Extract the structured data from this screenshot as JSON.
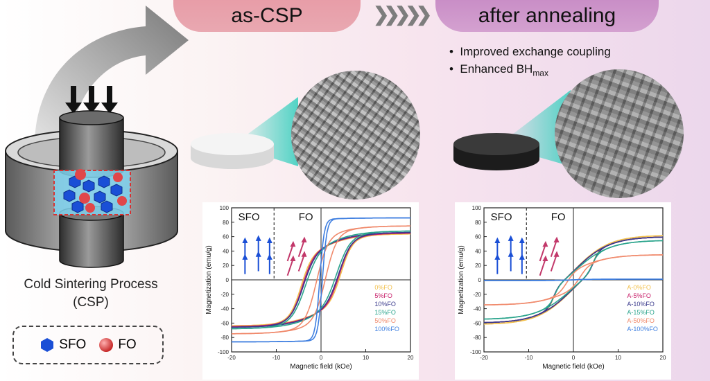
{
  "header": {
    "left_label": "as-CSP",
    "right_label": "after annealing",
    "chevrons": "❯❯❯❯❯",
    "bullet_1": "Improved exchange coupling",
    "bullet_2_main": "Enhanced BH",
    "bullet_2_sub": "max"
  },
  "process": {
    "caption_line1": "Cold Sintering Process",
    "caption_line2": "(CSP)",
    "legend_sfo": "SFO",
    "legend_fo": "FO"
  },
  "colors": {
    "sfo_blue": "#1a4fd6",
    "fo_red": "#d63333",
    "pill_left": "#e79aa5",
    "pill_right": "#c689c4"
  },
  "chart_data": [
    {
      "type": "line",
      "xlabel": "Magnetic field (kOe)",
      "ylabel": "Magnetization (emu/g)",
      "xlim": [
        -20,
        20
      ],
      "ylim": [
        -100,
        100
      ],
      "xticks": [
        "-20",
        "-10",
        "0",
        "10",
        "20"
      ],
      "yticks": [
        "100",
        "80",
        "60",
        "40",
        "20",
        "0",
        "-20",
        "-40",
        "-60",
        "-80",
        "-100"
      ],
      "region_labels": [
        "SFO",
        "FO"
      ],
      "series": [
        {
          "name": "0%FO",
          "color": "#f2c14e",
          "ms": 64,
          "hc": 4.5,
          "w": 2.5,
          "hf": 0.3
        },
        {
          "name": "5%FO",
          "color": "#c8206a",
          "ms": 65,
          "hc": 4.2,
          "w": 2.6,
          "hf": 0.3
        },
        {
          "name": "10%FO",
          "color": "#3a3a8c",
          "ms": 66,
          "hc": 4.0,
          "w": 2.8,
          "hf": 0.3
        },
        {
          "name": "15%FO",
          "color": "#2aa48c",
          "ms": 68,
          "hc": 3.5,
          "w": 3.0,
          "hf": 0.3
        },
        {
          "name": "50%FO",
          "color": "#f08a6c",
          "ms": 75,
          "hc": 1.0,
          "w": 2.5,
          "hf": 0.2
        },
        {
          "name": "100%FO",
          "color": "#3f7fe0",
          "ms": 86,
          "hc": 0.3,
          "w": 1.0,
          "hf": 0.02
        }
      ]
    },
    {
      "type": "line",
      "xlabel": "Magnetic field (kOe)",
      "ylabel": "Magnetization (emu/g)",
      "xlim": [
        -20,
        20
      ],
      "ylim": [
        -100,
        100
      ],
      "xticks": [
        "-20",
        "-10",
        "0",
        "10",
        "20"
      ],
      "yticks": [
        "100",
        "80",
        "60",
        "40",
        "20",
        "0",
        "-20",
        "-40",
        "-60",
        "-80",
        "-100"
      ],
      "region_labels": [
        "SFO",
        "FO"
      ],
      "series": [
        {
          "name": "A-0%FO",
          "color": "#f2c14e",
          "ms": 62,
          "hc": 4.5,
          "w": 1.2,
          "hf": 0.8
        },
        {
          "name": "A-5%FO",
          "color": "#c8206a",
          "ms": 60,
          "hc": 4.5,
          "w": 1.2,
          "hf": 0.8
        },
        {
          "name": "A-10%FO",
          "color": "#3a3a8c",
          "ms": 60,
          "hc": 4.5,
          "w": 1.2,
          "hf": 0.8
        },
        {
          "name": "A-15%FO",
          "color": "#2aa48c",
          "ms": 55,
          "hc": 4.2,
          "w": 1.2,
          "hf": 0.8
        },
        {
          "name": "A-50%FO",
          "color": "#f08a6c",
          "ms": 35,
          "hc": 1.5,
          "w": 2.0,
          "hf": 0.6
        },
        {
          "name": "A-100%FO",
          "color": "#3f7fe0",
          "ms": 1,
          "hc": 0,
          "w": 2.0,
          "hf": 0.5
        }
      ]
    }
  ]
}
